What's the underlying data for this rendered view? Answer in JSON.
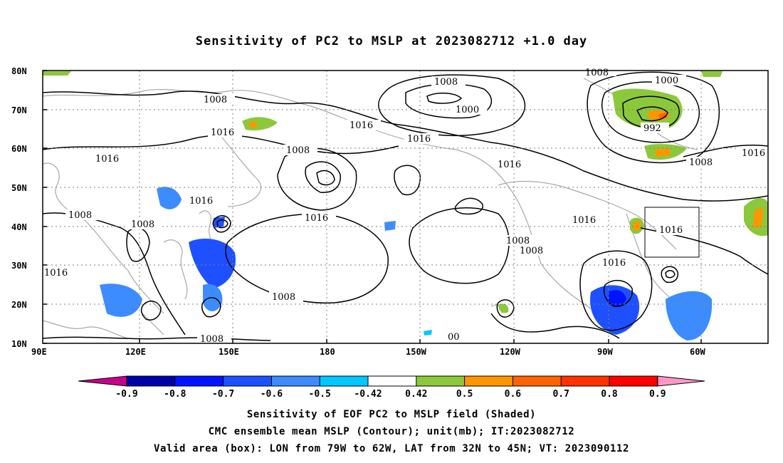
{
  "title": "Sensitivity of PC2 to MSLP at 2023082712 +1.0 day",
  "map": {
    "lat_labels": [
      "80N",
      "70N",
      "60N",
      "50N",
      "40N",
      "30N",
      "20N",
      "10N"
    ],
    "lon_labels": [
      "90E",
      "120E",
      "150E",
      "180",
      "150W",
      "120W",
      "90W",
      "60W"
    ],
    "contour_labels": [
      {
        "text": "1008"
      },
      {
        "text": "1008"
      },
      {
        "text": "1008"
      },
      {
        "text": "1000"
      },
      {
        "text": "1000"
      },
      {
        "text": "992"
      },
      {
        "text": "1016"
      },
      {
        "text": "1016"
      },
      {
        "text": "1016"
      },
      {
        "text": "1016"
      },
      {
        "text": "1008"
      },
      {
        "text": "1016"
      },
      {
        "text": "1016"
      },
      {
        "text": "1008"
      },
      {
        "text": "1016"
      },
      {
        "text": "1016"
      },
      {
        "text": "1008"
      },
      {
        "text": "1008"
      },
      {
        "text": "1016"
      },
      {
        "text": "1016"
      },
      {
        "text": "1008"
      },
      {
        "text": "1008"
      },
      {
        "text": "1016"
      },
      {
        "text": "1008"
      },
      {
        "text": "1008"
      },
      {
        "text": "00"
      },
      {
        "text": "1016"
      }
    ],
    "valid_box": {
      "lon_from": "79W",
      "lon_to": "62W",
      "lat_from": "32N",
      "lat_to": "45N"
    }
  },
  "colorbar": {
    "colors": [
      "#c8008c",
      "#0000a8",
      "#0014ff",
      "#1e50ff",
      "#3c8cff",
      "#00c8ff",
      "#ffffff",
      "#8cc83c",
      "#ff9600",
      "#ff6400",
      "#ff3200",
      "#ff0000",
      "#ff96c8"
    ],
    "ticks": [
      "-0.9",
      "-0.8",
      "-0.7",
      "-0.6",
      "-0.5",
      "-0.42",
      "0.42",
      "0.5",
      "0.6",
      "0.7",
      "0.8",
      "0.9"
    ]
  },
  "captions": {
    "line1": "Sensitivity of EOF PC2 to MSLP field (Shaded)",
    "line2": "CMC ensemble mean MSLP (Contour); unit(mb); IT:2023082712",
    "line3": "Valid area (box): LON from 79W to 62W, LAT from 32N to 45N; VT: 2023090112"
  }
}
